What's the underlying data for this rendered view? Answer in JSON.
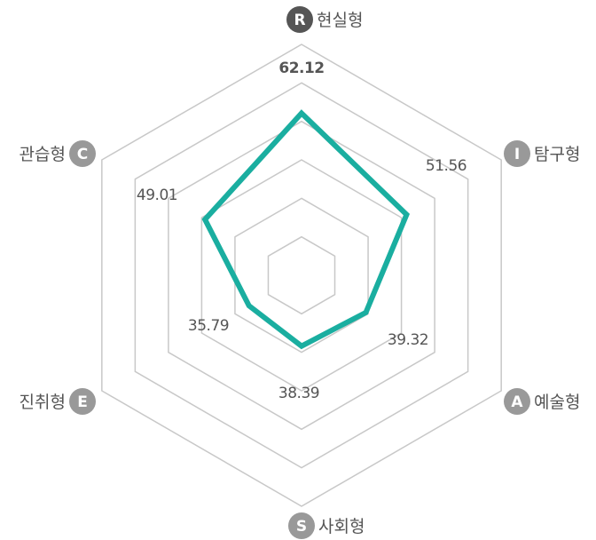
{
  "chart_data": {
    "type": "radar",
    "categories": [
      "현실형",
      "탐구형",
      "예술형",
      "사회형",
      "진취형",
      "관습형"
    ],
    "badges": [
      "R",
      "I",
      "A",
      "S",
      "E",
      "C"
    ],
    "values": [
      62.12,
      51.56,
      39.32,
      38.39,
      35.79,
      49.01
    ],
    "color": "#1aaea0",
    "rlim": [
      20,
      80
    ],
    "rticks": [
      30,
      40,
      50,
      60,
      70,
      80
    ],
    "grid": true
  }
}
